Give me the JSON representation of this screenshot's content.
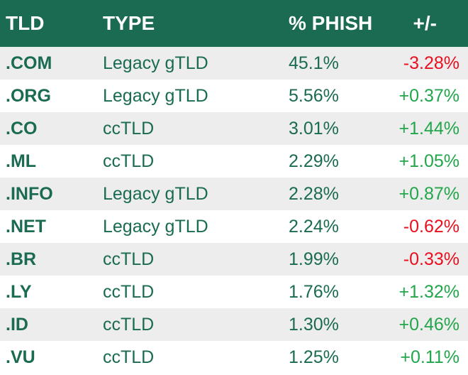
{
  "header": {
    "tld": "TLD",
    "type": "TYPE",
    "phish": "% PHISH",
    "change": "+/-"
  },
  "rows": [
    {
      "tld": ".COM",
      "type": "Legacy gTLD",
      "phish": "45.1%",
      "change": "-3.28%",
      "direction": "down"
    },
    {
      "tld": ".ORG",
      "type": "Legacy gTLD",
      "phish": "5.56%",
      "change": "+0.37%",
      "direction": "up"
    },
    {
      "tld": ".CO",
      "type": "ccTLD",
      "phish": "3.01%",
      "change": "+1.44%",
      "direction": "up"
    },
    {
      "tld": ".ML",
      "type": "ccTLD",
      "phish": "2.29%",
      "change": "+1.05%",
      "direction": "up"
    },
    {
      "tld": ".INFO",
      "type": "Legacy gTLD",
      "phish": "2.28%",
      "change": "+0.87%",
      "direction": "up"
    },
    {
      "tld": ".NET",
      "type": "Legacy gTLD",
      "phish": "2.24%",
      "change": "-0.62%",
      "direction": "down"
    },
    {
      "tld": ".BR",
      "type": "ccTLD",
      "phish": "1.99%",
      "change": "-0.33%",
      "direction": "down"
    },
    {
      "tld": ".LY",
      "type": "ccTLD",
      "phish": "1.76%",
      "change": "+1.32%",
      "direction": "up"
    },
    {
      "tld": ".ID",
      "type": "ccTLD",
      "phish": "1.30%",
      "change": "+0.46%",
      "direction": "up"
    },
    {
      "tld": ".VU",
      "type": "ccTLD",
      "phish": "1.25%",
      "change": "+0.11%",
      "direction": "up"
    }
  ],
  "colors": {
    "header_bg": "#1a6b52",
    "text_green": "#1a6b52",
    "positive": "#22a64b",
    "negative": "#e8101e",
    "row_shade": "#ededed"
  }
}
